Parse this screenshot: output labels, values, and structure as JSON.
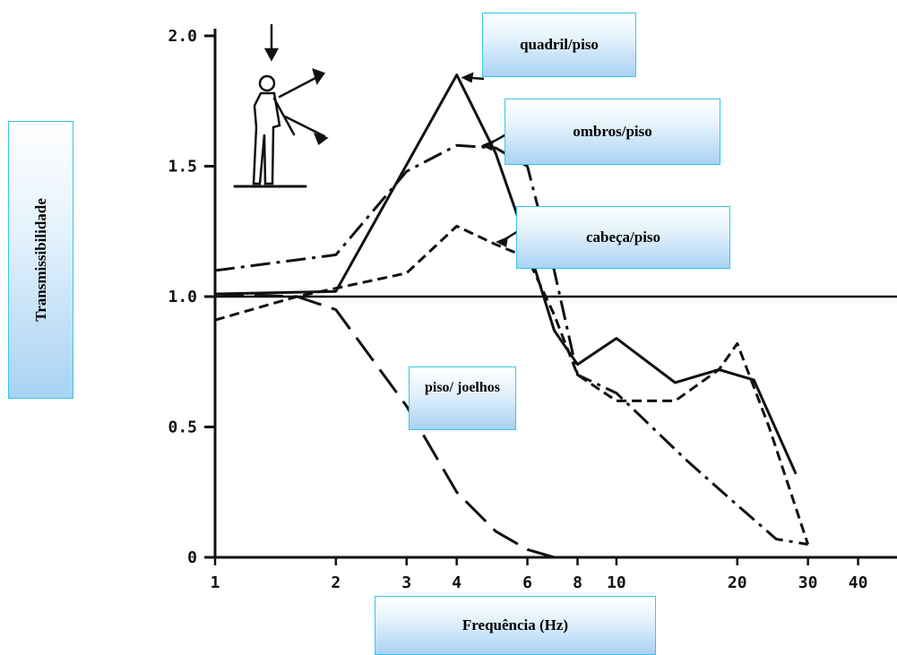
{
  "chart_data": {
    "type": "line",
    "xlabel": "Frequência (Hz)",
    "ylabel": "Transmissibilidade",
    "x_scale": "log",
    "xlim": [
      1,
      50
    ],
    "ylim": [
      0,
      2.0
    ],
    "x_ticks": [
      1,
      2,
      3,
      4,
      6,
      8,
      10,
      20,
      30,
      40
    ],
    "x_tick_labels": [
      "1",
      "2",
      "3",
      "4",
      "6",
      "8",
      "10",
      "20",
      "30",
      "40"
    ],
    "y_ticks": [
      0,
      0.5,
      1.0,
      1.5,
      2.0
    ],
    "y_tick_labels": [
      "0",
      "0.5",
      "1.0",
      "1.5",
      "2.0"
    ],
    "reference_line": 1.0,
    "series": [
      {
        "name": "quadril/piso",
        "style": "solid",
        "x": [
          1,
          2,
          4,
          5,
          6,
          7,
          8,
          10,
          14,
          18,
          22,
          28
        ],
        "y": [
          1.01,
          1.02,
          1.85,
          1.55,
          1.2,
          0.87,
          0.74,
          0.84,
          0.67,
          0.72,
          0.68,
          0.32
        ]
      },
      {
        "name": "ombros/piso",
        "style": "dash-dot",
        "x": [
          1,
          2,
          3,
          4,
          5,
          6,
          7,
          8,
          10,
          15,
          20,
          25,
          30
        ],
        "y": [
          1.1,
          1.16,
          1.48,
          1.58,
          1.57,
          1.5,
          1.1,
          0.7,
          0.63,
          0.37,
          0.2,
          0.07,
          0.05
        ]
      },
      {
        "name": "cabeça/piso",
        "style": "dashed",
        "x": [
          1,
          1.6,
          3,
          4,
          5,
          6,
          7,
          8,
          10,
          14,
          18,
          20,
          24,
          30
        ],
        "y": [
          0.91,
          1.0,
          1.09,
          1.27,
          1.2,
          1.15,
          0.93,
          0.7,
          0.6,
          0.6,
          0.72,
          0.82,
          0.5,
          0.05
        ]
      },
      {
        "name": "piso/joelhos",
        "style": "long-dash",
        "x": [
          1,
          1.6,
          2,
          3,
          4,
          5,
          6,
          7
        ],
        "y": [
          1.01,
          1.0,
          0.95,
          0.58,
          0.25,
          0.1,
          0.03,
          0.0
        ]
      }
    ]
  },
  "labels": {
    "quadril": "quadril/piso",
    "ombros": "ombros/piso",
    "cabeca": "cabeça/piso",
    "piso": "piso/ joelhos"
  },
  "icons": [
    "standing-person-vibration-icon"
  ]
}
